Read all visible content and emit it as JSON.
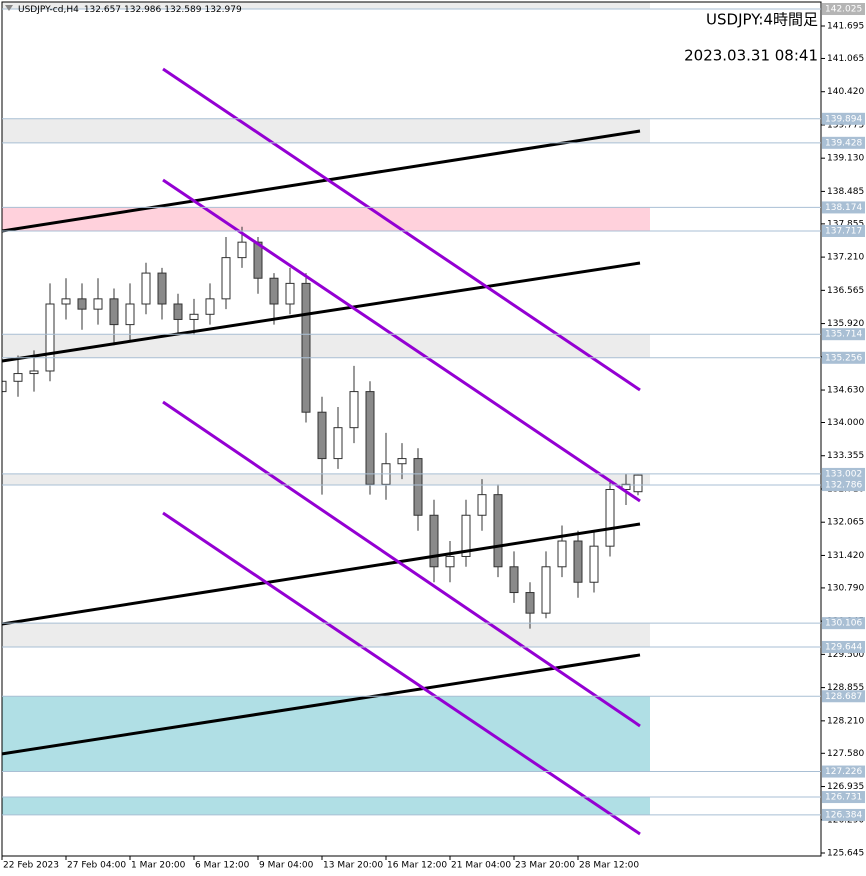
{
  "chart_data": {
    "type": "candlestick",
    "symbol": "USDJPY-cd,H4",
    "title": "USDJPY:4時間足",
    "subtitle": "2023.03.31 08:41",
    "x": [
      0,
      4,
      8,
      12,
      16,
      20,
      24,
      28,
      32,
      36,
      40,
      44,
      48,
      52,
      56,
      60,
      64,
      68,
      72,
      76,
      80,
      84,
      88,
      92,
      96,
      100,
      104,
      108,
      112,
      116,
      120,
      124,
      128,
      132,
      136,
      140,
      144,
      148,
      152,
      156,
      159
    ],
    "open": [
      134.6,
      134.8,
      134.95,
      135.0,
      136.3,
      136.4,
      136.2,
      136.4,
      135.9,
      136.3,
      136.9,
      136.3,
      136.0,
      136.1,
      136.4,
      137.2,
      137.5,
      136.8,
      136.3,
      136.7,
      134.2,
      133.3,
      133.9,
      134.6,
      132.8,
      133.2,
      133.3,
      132.2,
      131.2,
      131.4,
      132.2,
      132.6,
      131.2,
      130.7,
      130.3,
      131.2,
      131.7,
      130.9,
      131.6,
      132.7,
      132.657
    ],
    "high": [
      135.1,
      135.3,
      135.4,
      136.7,
      136.8,
      136.7,
      136.8,
      136.6,
      136.7,
      137.1,
      137.0,
      136.5,
      136.4,
      136.7,
      137.6,
      137.8,
      137.6,
      136.9,
      137.0,
      136.9,
      134.5,
      134.3,
      135.1,
      134.8,
      133.8,
      133.6,
      133.5,
      132.5,
      131.7,
      132.5,
      132.9,
      132.8,
      131.5,
      130.9,
      131.5,
      132.0,
      131.9,
      131.9,
      132.9,
      133.0,
      132.986
    ],
    "low": [
      134.2,
      134.5,
      134.6,
      134.8,
      136.0,
      135.8,
      135.9,
      135.5,
      135.6,
      136.1,
      136.0,
      135.7,
      135.7,
      135.9,
      136.2,
      137.0,
      136.5,
      135.9,
      136.1,
      134.0,
      132.6,
      133.1,
      133.6,
      132.6,
      132.5,
      132.9,
      131.9,
      130.9,
      130.9,
      131.2,
      131.9,
      131.0,
      130.5,
      130.0,
      130.2,
      131.0,
      130.6,
      130.7,
      131.4,
      132.4,
      132.589
    ],
    "close": [
      134.8,
      134.95,
      135.0,
      136.3,
      136.4,
      136.2,
      136.4,
      135.9,
      136.3,
      136.9,
      136.3,
      136.0,
      136.1,
      136.4,
      137.2,
      137.5,
      136.8,
      136.3,
      136.7,
      134.2,
      133.3,
      133.9,
      134.6,
      132.8,
      133.2,
      133.3,
      132.2,
      131.2,
      131.4,
      132.2,
      132.6,
      131.2,
      130.7,
      130.3,
      131.2,
      131.7,
      130.9,
      131.6,
      132.7,
      132.8,
      132.979
    ],
    "up_color": "#ffffff",
    "down_color": "#8a8a8a",
    "xlim": [
      0,
      204.75
    ],
    "ylim": [
      125.587,
      142.161
    ],
    "xticks": [
      {
        "value": 0,
        "label": "22 Feb 2023"
      },
      {
        "value": 16,
        "label": "27 Feb 04:00"
      },
      {
        "value": 32,
        "label": "1 Mar 20:00"
      },
      {
        "value": 48,
        "label": "6 Mar 12:00"
      },
      {
        "value": 64,
        "label": "9 Mar 04:00"
      },
      {
        "value": 80,
        "label": "13 Mar 20:00"
      },
      {
        "value": 96,
        "label": "16 Mar 12:00"
      },
      {
        "value": 112,
        "label": "21 Mar 04:00"
      },
      {
        "value": 128,
        "label": "23 Mar 20:00"
      },
      {
        "value": 144,
        "label": "28 Mar 12:00"
      }
    ],
    "yticks": [
      141.695,
      141.065,
      {
        "value": 140.42,
        "label": "140.420"
      },
      139.775,
      {
        "value": 139.13,
        "label": "139.130"
      },
      138.485,
      137.855,
      {
        "value": 137.21,
        "label": "137.210"
      },
      136.565,
      {
        "value": 135.92,
        "label": "135.920"
      },
      135.275,
      {
        "value": 134.63,
        "label": "134.630"
      },
      {
        "value": 134,
        "label": "134.000"
      },
      133.355,
      {
        "value": 132.71,
        "label": "132.710"
      },
      132.065,
      {
        "value": 131.42,
        "label": "131.420"
      },
      {
        "value": 130.79,
        "label": "130.790"
      },
      130.145,
      {
        "value": 129.5,
        "label": "129.500"
      },
      128.855,
      {
        "value": 128.21,
        "label": "128.210"
      },
      {
        "value": 127.58,
        "label": "127.580"
      },
      126.935,
      {
        "value": 126.29,
        "label": "126.290"
      },
      125.645
    ],
    "levels": [
      142.025
    ],
    "zones": [
      {
        "low": 139.428,
        "high": 139.894,
        "color": "#ececec"
      },
      {
        "low": 137.717,
        "high": 138.174,
        "color": "#ffd1dc"
      },
      {
        "low": 135.256,
        "high": 135.714,
        "color": "#ececec"
      },
      {
        "low": 132.786,
        "high": 133.002,
        "color": "#ececec"
      },
      {
        "low": 129.644,
        "high": 130.106,
        "color": "#ececec"
      },
      {
        "low": 127.226,
        "high": 128.687,
        "color": "#b0dfe5"
      },
      {
        "low": 126.384,
        "high": 126.731,
        "color": "#b0dfe5"
      }
    ],
    "trendlines": [
      {
        "x": [
          0,
          159.5
        ],
        "y": [
          137.717,
          139.657
        ],
        "color": "#000000"
      },
      {
        "x": [
          0,
          159.5
        ],
        "y": [
          135.194,
          137.096
        ],
        "color": "#000000"
      },
      {
        "x": [
          0,
          159.5
        ],
        "y": [
          130.09,
          132.031
        ],
        "color": "#000000"
      },
      {
        "x": [
          0,
          159.5
        ],
        "y": [
          127.568,
          129.489
        ],
        "color": "#000000"
      },
      {
        "x": [
          40.25,
          159.5
        ],
        "y": [
          140.861,
          134.631
        ],
        "color": "#9400d3"
      },
      {
        "x": [
          40.25,
          159.5
        ],
        "y": [
          138.707,
          132.477
        ],
        "color": "#9400d3"
      },
      {
        "x": [
          40.25,
          159.5
        ],
        "y": [
          134.398,
          128.111
        ],
        "color": "#9400d3"
      },
      {
        "x": [
          40.25,
          159.5
        ],
        "y": [
          132.244,
          126.015
        ],
        "color": "#9400d3"
      }
    ]
  }
}
